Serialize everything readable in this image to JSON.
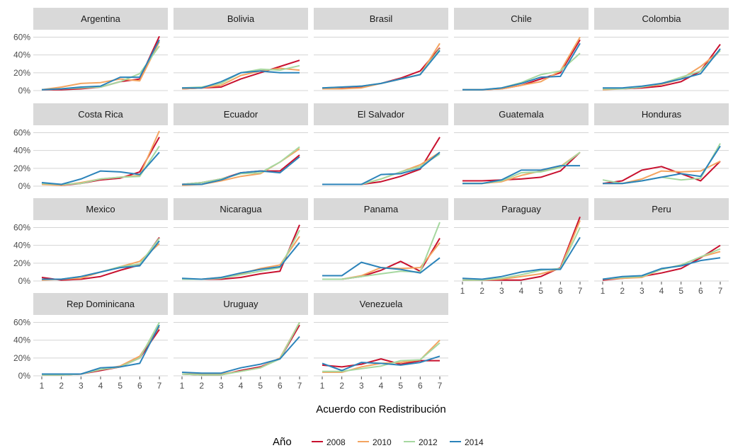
{
  "chart_data": {
    "type": "line",
    "layout": "facet-grid",
    "xlabel": "Acuerdo con Redistribución",
    "ylabel": "",
    "x": [
      1,
      2,
      3,
      4,
      5,
      6,
      7
    ],
    "xticks": [
      "1",
      "2",
      "3",
      "4",
      "5",
      "6",
      "7"
    ],
    "yticks": [
      "0%",
      "20%",
      "40%",
      "60%"
    ],
    "ylim": [
      0,
      0.62
    ],
    "grid": true,
    "legend": {
      "title": "Año",
      "position": "bottom",
      "entries": [
        "2008",
        "2010",
        "2012",
        "2014"
      ]
    },
    "colors": {
      "2008": "#c8102e",
      "2010": "#f4a460",
      "2012": "#a6d8a0",
      "2014": "#2b83ba",
      "strip_bg": "#d9d9d9",
      "grid": "#d4d4d4"
    },
    "panels": [
      {
        "title": "Argentina",
        "series": [
          {
            "name": "2008",
            "values": [
              0.01,
              0.01,
              0.02,
              0.04,
              0.1,
              0.13,
              0.61
            ]
          },
          {
            "name": "2010",
            "values": [
              0.01,
              0.04,
              0.08,
              0.09,
              0.13,
              0.11,
              0.55
            ]
          },
          {
            "name": "2012",
            "values": [
              0.01,
              0.02,
              0.03,
              0.04,
              0.1,
              0.19,
              0.5
            ]
          },
          {
            "name": "2014",
            "values": [
              0.01,
              0.02,
              0.04,
              0.05,
              0.15,
              0.15,
              0.57
            ]
          }
        ]
      },
      {
        "title": "Bolivia",
        "series": [
          {
            "name": "2008",
            "values": [
              0.02,
              0.03,
              0.04,
              0.13,
              0.2,
              0.27,
              0.34
            ]
          },
          {
            "name": "2010",
            "values": [
              0.02,
              0.03,
              0.06,
              0.17,
              0.22,
              0.25,
              0.23
            ]
          },
          {
            "name": "2012",
            "values": [
              0.03,
              0.04,
              0.08,
              0.2,
              0.24,
              0.23,
              0.28
            ]
          },
          {
            "name": "2014",
            "values": [
              0.03,
              0.03,
              0.1,
              0.2,
              0.22,
              0.2,
              0.2
            ]
          }
        ]
      },
      {
        "title": "Brasil",
        "series": [
          {
            "name": "2008",
            "values": [
              0.02,
              0.03,
              0.04,
              0.08,
              0.14,
              0.22,
              0.48
            ]
          },
          {
            "name": "2010",
            "values": [
              0.02,
              0.02,
              0.03,
              0.08,
              0.13,
              0.18,
              0.53
            ]
          },
          {
            "name": "2012",
            "values": [
              0.03,
              0.04,
              0.05,
              0.08,
              0.13,
              0.18,
              0.47
            ]
          },
          {
            "name": "2014",
            "values": [
              0.03,
              0.04,
              0.05,
              0.08,
              0.13,
              0.18,
              0.45
            ]
          }
        ]
      },
      {
        "title": "Chile",
        "series": [
          {
            "name": "2008",
            "values": [
              0.01,
              0.01,
              0.02,
              0.06,
              0.13,
              0.2,
              0.57
            ]
          },
          {
            "name": "2010",
            "values": [
              0.01,
              0.01,
              0.02,
              0.06,
              0.1,
              0.22,
              0.6
            ]
          },
          {
            "name": "2012",
            "values": [
              0.01,
              0.01,
              0.03,
              0.09,
              0.18,
              0.22,
              0.42
            ]
          },
          {
            "name": "2014",
            "values": [
              0.01,
              0.01,
              0.03,
              0.08,
              0.15,
              0.16,
              0.53
            ]
          }
        ]
      },
      {
        "title": "Colombia",
        "series": [
          {
            "name": "2008",
            "values": [
              0.02,
              0.02,
              0.03,
              0.05,
              0.1,
              0.22,
              0.52
            ]
          },
          {
            "name": "2010",
            "values": [
              0.01,
              0.02,
              0.04,
              0.07,
              0.13,
              0.27,
              0.45
            ]
          },
          {
            "name": "2012",
            "values": [
              0.02,
              0.02,
              0.04,
              0.08,
              0.15,
              0.22,
              0.45
            ]
          },
          {
            "name": "2014",
            "values": [
              0.03,
              0.03,
              0.05,
              0.08,
              0.13,
              0.19,
              0.47
            ]
          }
        ]
      },
      {
        "title": "Costa Rica",
        "series": [
          {
            "name": "2008",
            "values": [
              0.03,
              0.01,
              0.03,
              0.07,
              0.09,
              0.16,
              0.55
            ]
          },
          {
            "name": "2010",
            "values": [
              0.02,
              0.01,
              0.04,
              0.08,
              0.1,
              0.12,
              0.62
            ]
          },
          {
            "name": "2012",
            "values": [
              0.03,
              0.02,
              0.03,
              0.08,
              0.1,
              0.11,
              0.45
            ]
          },
          {
            "name": "2014",
            "values": [
              0.04,
              0.02,
              0.08,
              0.17,
              0.16,
              0.13,
              0.38
            ]
          }
        ]
      },
      {
        "title": "Ecuador",
        "series": [
          {
            "name": "2008",
            "values": [
              0.02,
              0.04,
              0.08,
              0.15,
              0.17,
              0.17,
              0.35
            ]
          },
          {
            "name": "2010",
            "values": [
              0.01,
              0.02,
              0.06,
              0.11,
              0.14,
              0.27,
              0.42
            ]
          },
          {
            "name": "2012",
            "values": [
              0.02,
              0.04,
              0.08,
              0.14,
              0.15,
              0.27,
              0.44
            ]
          },
          {
            "name": "2014",
            "values": [
              0.02,
              0.02,
              0.07,
              0.15,
              0.17,
              0.15,
              0.33
            ]
          }
        ]
      },
      {
        "title": "El Salvador",
        "series": [
          {
            "name": "2008",
            "values": [
              0.02,
              0.02,
              0.02,
              0.05,
              0.11,
              0.19,
              0.55
            ]
          },
          {
            "name": "2010",
            "values": [
              0.02,
              0.02,
              0.02,
              0.08,
              0.16,
              0.24,
              0.38
            ]
          },
          {
            "name": "2012",
            "values": [
              0.02,
              0.02,
              0.02,
              0.08,
              0.16,
              0.22,
              0.36
            ]
          },
          {
            "name": "2014",
            "values": [
              0.02,
              0.02,
              0.02,
              0.13,
              0.14,
              0.2,
              0.38
            ]
          }
        ]
      },
      {
        "title": "Guatemala",
        "series": [
          {
            "name": "2008",
            "values": [
              0.06,
              0.06,
              0.07,
              0.08,
              0.1,
              0.17,
              0.38
            ]
          },
          {
            "name": "2010",
            "values": [
              0.03,
              0.03,
              0.05,
              0.12,
              0.17,
              0.22,
              0.38
            ]
          },
          {
            "name": "2012",
            "values": [
              0.03,
              0.03,
              0.06,
              0.15,
              0.16,
              0.21,
              0.38
            ]
          },
          {
            "name": "2014",
            "values": [
              0.03,
              0.03,
              0.07,
              0.18,
              0.18,
              0.23,
              0.23
            ]
          }
        ]
      },
      {
        "title": "Honduras",
        "series": [
          {
            "name": "2008",
            "values": [
              0.03,
              0.06,
              0.18,
              0.22,
              0.14,
              0.06,
              0.28
            ]
          },
          {
            "name": "2010",
            "values": [
              0.03,
              0.03,
              0.08,
              0.17,
              0.16,
              0.17,
              0.28
            ]
          },
          {
            "name": "2012",
            "values": [
              0.07,
              0.03,
              0.06,
              0.1,
              0.07,
              0.09,
              0.48
            ]
          },
          {
            "name": "2014",
            "values": [
              0.03,
              0.03,
              0.06,
              0.1,
              0.14,
              0.11,
              0.45
            ]
          }
        ]
      },
      {
        "title": "Mexico",
        "series": [
          {
            "name": "2008",
            "values": [
              0.04,
              0.01,
              0.02,
              0.05,
              0.12,
              0.18,
              0.49
            ]
          },
          {
            "name": "2010",
            "values": [
              0.01,
              0.02,
              0.03,
              0.1,
              0.16,
              0.22,
              0.42
            ]
          },
          {
            "name": "2012",
            "values": [
              0.02,
              0.02,
              0.05,
              0.1,
              0.16,
              0.19,
              0.48
            ]
          },
          {
            "name": "2014",
            "values": [
              0.02,
              0.02,
              0.05,
              0.1,
              0.15,
              0.17,
              0.45
            ]
          }
        ]
      },
      {
        "title": "Nicaragua",
        "series": [
          {
            "name": "2008",
            "values": [
              0.02,
              0.02,
              0.02,
              0.04,
              0.08,
              0.11,
              0.63
            ]
          },
          {
            "name": "2010",
            "values": [
              0.02,
              0.02,
              0.04,
              0.08,
              0.14,
              0.18,
              0.5
            ]
          },
          {
            "name": "2012",
            "values": [
              0.02,
              0.02,
              0.03,
              0.07,
              0.11,
              0.15,
              0.57
            ]
          },
          {
            "name": "2014",
            "values": [
              0.03,
              0.02,
              0.04,
              0.09,
              0.13,
              0.16,
              0.43
            ]
          }
        ]
      },
      {
        "title": "Panama",
        "series": [
          {
            "name": "2008",
            "values": [
              0.02,
              0.02,
              0.05,
              0.12,
              0.22,
              0.11,
              0.48
            ]
          },
          {
            "name": "2010",
            "values": [
              0.02,
              0.02,
              0.06,
              0.15,
              0.14,
              0.15,
              0.43
            ]
          },
          {
            "name": "2012",
            "values": [
              0.02,
              0.02,
              0.05,
              0.08,
              0.11,
              0.1,
              0.66
            ]
          },
          {
            "name": "2014",
            "values": [
              0.06,
              0.06,
              0.21,
              0.15,
              0.13,
              0.09,
              0.26
            ]
          }
        ]
      },
      {
        "title": "Paraguay",
        "series": [
          {
            "name": "2008",
            "values": [
              0.01,
              0.01,
              0.01,
              0.01,
              0.05,
              0.15,
              0.72
            ]
          },
          {
            "name": "2010",
            "values": [
              0.01,
              0.01,
              0.02,
              0.05,
              0.08,
              0.14,
              0.68
            ]
          },
          {
            "name": "2012",
            "values": [
              0.01,
              0.01,
              0.03,
              0.07,
              0.12,
              0.14,
              0.6
            ]
          },
          {
            "name": "2014",
            "values": [
              0.03,
              0.02,
              0.05,
              0.1,
              0.13,
              0.13,
              0.49
            ]
          }
        ]
      },
      {
        "title": "Peru",
        "series": [
          {
            "name": "2008",
            "values": [
              0.01,
              0.03,
              0.05,
              0.09,
              0.14,
              0.26,
              0.4
            ]
          },
          {
            "name": "2010",
            "values": [
              0.02,
              0.03,
              0.04,
              0.13,
              0.18,
              0.27,
              0.33
            ]
          },
          {
            "name": "2012",
            "values": [
              0.02,
              0.04,
              0.05,
              0.13,
              0.18,
              0.27,
              0.36
            ]
          },
          {
            "name": "2014",
            "values": [
              0.02,
              0.05,
              0.06,
              0.14,
              0.17,
              0.23,
              0.26
            ]
          }
        ]
      },
      {
        "title": "Rep Dominicana",
        "series": [
          {
            "name": "2008",
            "values": [
              0.01,
              0.01,
              0.02,
              0.06,
              0.1,
              0.2,
              0.52
            ]
          },
          {
            "name": "2010",
            "values": [
              0.01,
              0.01,
              0.02,
              0.07,
              0.11,
              0.22,
              0.55
            ]
          },
          {
            "name": "2012",
            "values": [
              0.01,
              0.01,
              0.02,
              0.07,
              0.1,
              0.2,
              0.6
            ]
          },
          {
            "name": "2014",
            "values": [
              0.02,
              0.02,
              0.02,
              0.09,
              0.1,
              0.14,
              0.57
            ]
          }
        ]
      },
      {
        "title": "Uruguay",
        "series": [
          {
            "name": "2008",
            "values": [
              0.02,
              0.01,
              0.01,
              0.06,
              0.1,
              0.19,
              0.57
            ]
          },
          {
            "name": "2010",
            "values": [
              0.02,
              0.02,
              0.02,
              0.05,
              0.09,
              0.2,
              0.6
            ]
          },
          {
            "name": "2012",
            "values": [
              0.02,
              0.01,
              0.01,
              0.05,
              0.09,
              0.19,
              0.6
            ]
          },
          {
            "name": "2014",
            "values": [
              0.04,
              0.03,
              0.03,
              0.09,
              0.13,
              0.19,
              0.44
            ]
          }
        ]
      },
      {
        "title": "Venezuela",
        "series": [
          {
            "name": "2008",
            "values": [
              0.12,
              0.1,
              0.13,
              0.19,
              0.13,
              0.17,
              0.17
            ]
          },
          {
            "name": "2010",
            "values": [
              0.04,
              0.04,
              0.1,
              0.14,
              0.15,
              0.18,
              0.4
            ]
          },
          {
            "name": "2012",
            "values": [
              0.05,
              0.05,
              0.08,
              0.11,
              0.17,
              0.18,
              0.37
            ]
          },
          {
            "name": "2014",
            "values": [
              0.14,
              0.06,
              0.15,
              0.14,
              0.12,
              0.15,
              0.22
            ]
          }
        ]
      }
    ]
  }
}
